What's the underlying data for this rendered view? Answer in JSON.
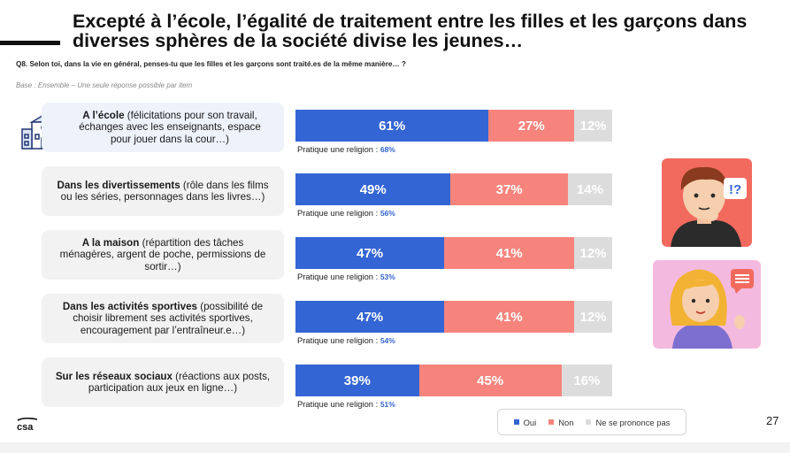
{
  "title": "Excepté à l’école, l’égalité de traitement entre les filles et les garçons dans diverses sphères de la société divise les jeunes…",
  "question": "Q8. Selon toi, dans la vie en général, penses-tu que les filles et les garçons sont traité.es de la même manière… ?",
  "base": "Base : Ensemble – Une seule réponse possible par item",
  "page_number": "27",
  "colors": {
    "oui": "#3465d4",
    "non": "#f6847c",
    "nsp": "#dcdcdc"
  },
  "chart_data": {
    "type": "bar",
    "orientation": "horizontal",
    "stacked": true,
    "categories": [
      {
        "bold": "A l’école",
        "rest": " (félicitations pour son travail, échanges avec les enseignants, espace pour jouer dans la cour…)"
      },
      {
        "bold": "Dans les divertissements",
        "rest": " (rôle dans les films ou les séries, personnages dans les livres…)"
      },
      {
        "bold": "A la maison",
        "rest": " (répartition des tâches ménagères, argent de poche, permissions de sortir…)"
      },
      {
        "bold": "Dans les activités sportives",
        "rest": " (possibilité de choisir librement ses activités sportives, encouragement par l’entraîneur.e…)"
      },
      {
        "bold": "Sur les réseaux sociaux",
        "rest": " (réactions aux posts, participation aux jeux en ligne…)"
      }
    ],
    "series": [
      {
        "name": "Oui",
        "values": [
          61,
          49,
          47,
          47,
          39
        ]
      },
      {
        "name": "Non",
        "values": [
          27,
          37,
          41,
          41,
          45
        ]
      },
      {
        "name": "Ne se prononce pas",
        "values": [
          12,
          14,
          12,
          12,
          16
        ]
      }
    ],
    "religion_label": "Pratique une religion : ",
    "religion_values": [
      68,
      56,
      53,
      54,
      51
    ],
    "legend_position": "bottom-right"
  }
}
